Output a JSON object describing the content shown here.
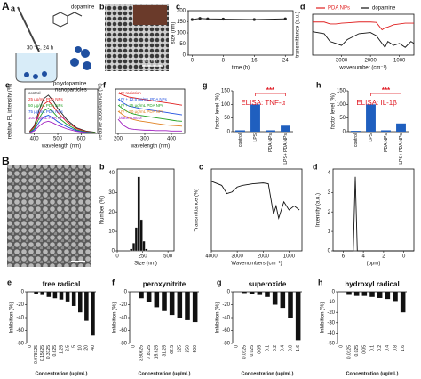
{
  "figure": {
    "section_a": "A",
    "panel_a": "a",
    "panel_b": "b",
    "section_b": "B",
    "panel_ba": "a",
    "schematic": [
      "dopamine",
      "30 °C, 24 h",
      "polydopamine",
      "nanoparticles"
    ],
    "scale_bar": "200 nm"
  },
  "chart_data": [
    {
      "type": "line",
      "panel": "c",
      "x": [
        0,
        2,
        4,
        8,
        16,
        24
      ],
      "values": [
        160,
        165,
        163,
        162,
        160,
        163
      ],
      "color": "#222222",
      "xlim": [
        -1,
        26
      ],
      "xticks": [
        0,
        8,
        16,
        24
      ],
      "ylim": [
        0,
        200
      ],
      "yticks": [
        0,
        50,
        100,
        150,
        200
      ],
      "xlabel": "time (h)",
      "ylabel": "size (nm)"
    },
    {
      "type": "line",
      "panel": "d",
      "legend": "top",
      "x": [
        4000,
        3600,
        3400,
        3200,
        3000,
        2800,
        2400,
        2000,
        1800,
        1600,
        1500,
        1400,
        1200,
        1000,
        800,
        600,
        500
      ],
      "series": [
        {
          "name": "PDA NPs",
          "color": "#e02020",
          "values": [
            0.85,
            0.85,
            0.8,
            0.8,
            0.82,
            0.83,
            0.85,
            0.85,
            0.84,
            0.65,
            0.7,
            0.72,
            0.78,
            0.8,
            0.82,
            0.82,
            0.82
          ]
        },
        {
          "name": "dopamine",
          "color": "#111111",
          "values": [
            0.6,
            0.55,
            0.35,
            0.3,
            0.25,
            0.4,
            0.55,
            0.58,
            0.5,
            0.3,
            0.2,
            0.35,
            0.25,
            0.3,
            0.2,
            0.35,
            0.3
          ]
        }
      ],
      "xlim": [
        4000,
        500
      ],
      "xticks": [
        3000,
        2000,
        1000
      ],
      "ylim": [
        0,
        1.05
      ],
      "xlabel": "wavenumber (cm⁻¹)",
      "ylabel": "transmittance (a.u.)"
    },
    {
      "type": "line",
      "panel": "e",
      "legend": "inline",
      "x": [
        380,
        400,
        420,
        440,
        460,
        480,
        500,
        540,
        580,
        620,
        660
      ],
      "series": [
        {
          "name": "control",
          "color": "#222222",
          "values": [
            0.05,
            0.19,
            0.57,
            0.86,
            0.95,
            0.81,
            0.62,
            0.33,
            0.14,
            0.06,
            0.03
          ]
        },
        {
          "name": "25 μg/mL PDA NPs",
          "color": "#e02020",
          "values": [
            0.04,
            0.16,
            0.48,
            0.72,
            0.8,
            0.68,
            0.52,
            0.28,
            0.12,
            0.05,
            0.02
          ]
        },
        {
          "name": "50 μg/mL PDA NPs",
          "color": "#20a020",
          "values": [
            0.03,
            0.12,
            0.37,
            0.56,
            0.62,
            0.53,
            0.4,
            0.22,
            0.09,
            0.04,
            0.02
          ]
        },
        {
          "name": "75 μg/mL PDA NPs",
          "color": "#2050e0",
          "values": [
            0.02,
            0.09,
            0.27,
            0.41,
            0.45,
            0.38,
            0.29,
            0.16,
            0.07,
            0.03,
            0.01
          ]
        },
        {
          "name": "100 μg/mL PDA NPs",
          "color": "#a020c0",
          "values": [
            0.02,
            0.06,
            0.18,
            0.27,
            0.3,
            0.26,
            0.2,
            0.11,
            0.05,
            0.02,
            0.01
          ]
        }
      ],
      "xlim": [
        360,
        670
      ],
      "xticks": [
        400,
        500,
        600
      ],
      "ylim": [
        0,
        1.1
      ],
      "xlabel": "wavelength (nm)",
      "ylabel": "relative FL intensity (%)"
    },
    {
      "type": "line",
      "panel": "f",
      "legend": "inline",
      "x": [
        200,
        220,
        240,
        260,
        280,
        300,
        320,
        340,
        360,
        380,
        400,
        420,
        440
      ],
      "series": [
        {
          "name": "UV radiation",
          "color": "#e02020",
          "values": [
            1.0,
            0.95,
            0.9,
            0.88,
            0.86,
            0.84,
            0.82,
            0.8,
            0.78,
            0.76,
            0.74,
            0.72,
            0.7
          ]
        },
        {
          "name": "UV + 12.5 μg/mL PDA NPs",
          "color": "#2050e0",
          "values": [
            0.85,
            0.75,
            0.68,
            0.65,
            0.62,
            0.6,
            0.58,
            0.56,
            0.54,
            0.52,
            0.5,
            0.48,
            0.46
          ]
        },
        {
          "name": "UV + 25 μg/mL PDA NPs",
          "color": "#20a020",
          "values": [
            0.7,
            0.6,
            0.52,
            0.48,
            0.45,
            0.43,
            0.41,
            0.39,
            0.37,
            0.35,
            0.33,
            0.31,
            0.3
          ]
        },
        {
          "name": "UV + 50 μg/mL PDA NPs",
          "color": "#e08020",
          "values": [
            0.55,
            0.45,
            0.38,
            0.34,
            0.31,
            0.29,
            0.27,
            0.25,
            0.23,
            0.21,
            0.2,
            0.19,
            0.18
          ]
        },
        {
          "name": "blank control",
          "color": "#a020c0",
          "values": [
            0.35,
            0.2,
            0.12,
            0.1,
            0.09,
            0.08,
            0.08,
            0.07,
            0.07,
            0.07,
            0.06,
            0.06,
            0.06
          ]
        }
      ],
      "xlim": [
        190,
        450
      ],
      "xticks": [
        200,
        300,
        400
      ],
      "ylim": [
        0,
        1.1
      ],
      "xlabel": "wavelength (nm)",
      "ylabel": "relative absorbance (%)"
    },
    {
      "type": "bar",
      "panel": "g",
      "title": "ELISA: TNF-α",
      "annotation": "***",
      "color": "#1f5fbf",
      "categories": [
        "control",
        "LPS",
        "PDA NPs",
        "LPS+ PDA NPs"
      ],
      "values": [
        5,
        100,
        5,
        22
      ],
      "ylim": [
        0,
        150
      ],
      "yticks": [
        0,
        50,
        100,
        150
      ],
      "ylabel": "factor level (%)"
    },
    {
      "type": "bar",
      "panel": "h",
      "title": "ELISA: IL-1β",
      "annotation": "***",
      "color": "#1f5fbf",
      "categories": [
        "control",
        "LPS",
        "PDA NPs",
        "LPS+ PDA NPs"
      ],
      "values": [
        3,
        100,
        5,
        30
      ],
      "ylim": [
        0,
        150
      ],
      "yticks": [
        0,
        50,
        100,
        150
      ],
      "ylabel": "factor level (%)"
    },
    {
      "type": "histogram",
      "panel": "b",
      "color": "#111111",
      "bins": [
        125,
        150,
        175,
        200,
        225,
        250,
        275,
        300
      ],
      "values": [
        1,
        4,
        12,
        38,
        16,
        5,
        1
      ],
      "xlim": [
        0,
        560
      ],
      "xticks": [
        0,
        250,
        500
      ],
      "ylim": [
        0,
        42
      ],
      "yticks": [
        0,
        10,
        20,
        30,
        40
      ],
      "xlabel": "Size (nm)",
      "ylabel": "Number (%)"
    },
    {
      "type": "line",
      "panel": "c",
      "color": "#111111",
      "x": [
        4000,
        3600,
        3400,
        3200,
        3000,
        2800,
        2400,
        2000,
        1800,
        1600,
        1500,
        1400,
        1200,
        1000,
        800,
        600
      ],
      "values": [
        0.85,
        0.8,
        0.7,
        0.72,
        0.78,
        0.8,
        0.82,
        0.83,
        0.82,
        0.45,
        0.55,
        0.4,
        0.6,
        0.5,
        0.55,
        0.5
      ],
      "xlim": [
        4000,
        500
      ],
      "xticks": [
        4000,
        3000,
        2000,
        1000
      ],
      "ylim": [
        0,
        1
      ],
      "xlabel": "Wavenumbers (cm⁻¹)",
      "ylabel": "Transmittance (%)"
    },
    {
      "type": "line",
      "panel": "d",
      "color": "#111111",
      "x": [
        7,
        5.0,
        4.8,
        4.6,
        -1
      ],
      "values": [
        0,
        0,
        3.8,
        0,
        0
      ],
      "xlim": [
        7,
        -1
      ],
      "xticks": [
        6,
        4,
        2,
        0
      ],
      "ylim": [
        0,
        4.2
      ],
      "yticks": [
        0,
        1,
        2,
        3,
        4
      ],
      "xlabel": "(ppm)",
      "ylabel": "Intensity (a.u.)"
    },
    {
      "type": "bar",
      "panel": "e",
      "title": "free radical",
      "color": "#111111",
      "categories": [
        "0",
        "0.078125",
        "0.15625",
        "0.3125",
        "0.625",
        "1.25",
        "2.5",
        "5",
        "10",
        "20",
        "40"
      ],
      "values": [
        0,
        -3,
        -5,
        -8,
        -10,
        -12,
        -15,
        -22,
        -32,
        -45,
        -68
      ],
      "ylim": [
        -80,
        0
      ],
      "yticks": [
        0,
        -20,
        -40,
        -60,
        -80
      ],
      "xlabel": "Concentration (ug/mL)",
      "ylabel": "Inhibition (%)"
    },
    {
      "type": "bar",
      "panel": "f",
      "title": "peroxynitrite",
      "color": "#111111",
      "categories": [
        "0",
        "3.90625",
        "7.8125",
        "15.625",
        "31.25",
        "62.5",
        "125",
        "250",
        "500"
      ],
      "values": [
        0,
        -10,
        -16,
        -24,
        -30,
        -36,
        -40,
        -44,
        -47
      ],
      "ylim": [
        -80,
        0
      ],
      "yticks": [
        0,
        -20,
        -40,
        -60,
        -80
      ],
      "xlabel": "Concentration (ug/mL)",
      "ylabel": "Inhibition (%)"
    },
    {
      "type": "bar",
      "panel": "g",
      "title": "superoxide",
      "color": "#111111",
      "categories": [
        "0",
        "0.0125",
        "0.025",
        "0.05",
        "0.1",
        "0.2",
        "0.4",
        "0.8",
        "1.6"
      ],
      "values": [
        0,
        -2,
        -4,
        -5,
        -8,
        -20,
        -25,
        -40,
        -75
      ],
      "ylim": [
        -80,
        0
      ],
      "yticks": [
        0,
        -20,
        -40,
        -60,
        -80
      ],
      "xlabel": "Concentration (ug/mL)",
      "ylabel": "Inhibition (%)"
    },
    {
      "type": "bar",
      "panel": "h",
      "title": "hydroxyl radical",
      "color": "#111111",
      "categories": [
        "0",
        "0.0125",
        "0.025",
        "0.05",
        "0.1",
        "0.2",
        "0.4",
        "0.8",
        "1.6"
      ],
      "values": [
        0,
        -3,
        -4,
        -4,
        -5,
        -6,
        -7,
        -9,
        -20
      ],
      "ylim": [
        -50,
        0
      ],
      "yticks": [
        0,
        -10,
        -20,
        -30,
        -40,
        -50
      ],
      "xlabel": "Concentration (ug/mL)",
      "ylabel": "Inhibition (%)"
    }
  ]
}
